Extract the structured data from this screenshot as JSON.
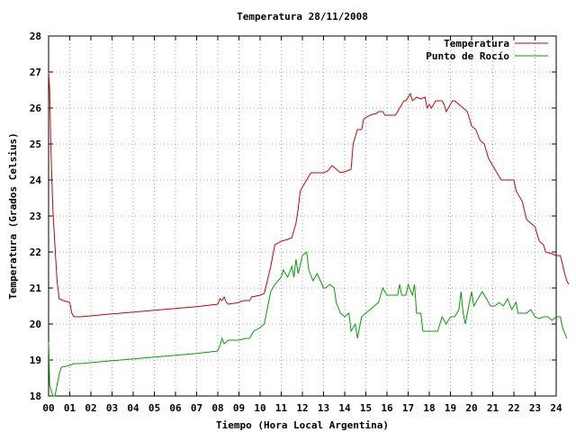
{
  "chart_data": {
    "type": "line",
    "title": "Temperatura 28/11/2008",
    "xlabel": "Tiempo (Hora Local Argentina)",
    "ylabel": "Temperatura (Grados Celsius)",
    "xlim": [
      0,
      24
    ],
    "ylim": [
      18,
      28
    ],
    "xticks": [
      "00",
      "01",
      "02",
      "03",
      "04",
      "05",
      "06",
      "07",
      "08",
      "09",
      "10",
      "11",
      "12",
      "13",
      "14",
      "15",
      "16",
      "17",
      "18",
      "19",
      "20",
      "21",
      "22",
      "23",
      "24"
    ],
    "yticks": [
      "18",
      "19",
      "20",
      "21",
      "22",
      "23",
      "24",
      "25",
      "26",
      "27",
      "28"
    ],
    "grid": true,
    "legend_position": "top-right",
    "series": [
      {
        "name": "Temperatura",
        "color": "#d00000",
        "points": [
          [
            0.0,
            27.0
          ],
          [
            0.05,
            26.5
          ],
          [
            0.1,
            25.0
          ],
          [
            0.2,
            23.2
          ],
          [
            0.3,
            22.2
          ],
          [
            0.4,
            21.2
          ],
          [
            0.5,
            20.7
          ],
          [
            0.7,
            20.65
          ],
          [
            1.0,
            20.6
          ],
          [
            1.1,
            20.3
          ],
          [
            1.2,
            20.2
          ],
          [
            1.5,
            20.2
          ],
          [
            3.0,
            20.28
          ],
          [
            5.0,
            20.38
          ],
          [
            7.0,
            20.48
          ],
          [
            8.0,
            20.55
          ],
          [
            8.1,
            20.7
          ],
          [
            8.2,
            20.65
          ],
          [
            8.3,
            20.75
          ],
          [
            8.4,
            20.6
          ],
          [
            8.5,
            20.55
          ],
          [
            9.0,
            20.6
          ],
          [
            9.2,
            20.65
          ],
          [
            9.5,
            20.65
          ],
          [
            9.6,
            20.75
          ],
          [
            10.0,
            20.8
          ],
          [
            10.2,
            20.85
          ],
          [
            10.3,
            21.1
          ],
          [
            10.5,
            21.6
          ],
          [
            10.7,
            22.2
          ],
          [
            11.0,
            22.3
          ],
          [
            11.3,
            22.35
          ],
          [
            11.5,
            22.4
          ],
          [
            11.7,
            22.8
          ],
          [
            11.8,
            23.2
          ],
          [
            11.9,
            23.7
          ],
          [
            12.0,
            23.8
          ],
          [
            12.2,
            24.0
          ],
          [
            12.4,
            24.2
          ],
          [
            12.7,
            24.2
          ],
          [
            13.0,
            24.2
          ],
          [
            13.2,
            24.25
          ],
          [
            13.4,
            24.4
          ],
          [
            13.6,
            24.3
          ],
          [
            13.8,
            24.2
          ],
          [
            14.1,
            24.25
          ],
          [
            14.3,
            24.3
          ],
          [
            14.4,
            25.0
          ],
          [
            14.6,
            25.4
          ],
          [
            14.8,
            25.4
          ],
          [
            14.9,
            25.7
          ],
          [
            15.2,
            25.8
          ],
          [
            15.5,
            25.85
          ],
          [
            15.6,
            25.9
          ],
          [
            15.8,
            25.9
          ],
          [
            15.9,
            25.8
          ],
          [
            16.1,
            25.8
          ],
          [
            16.4,
            25.8
          ],
          [
            16.5,
            25.9
          ],
          [
            16.7,
            26.1
          ],
          [
            16.8,
            26.2
          ],
          [
            16.9,
            26.2
          ],
          [
            17.0,
            26.3
          ],
          [
            17.1,
            26.4
          ],
          [
            17.2,
            26.2
          ],
          [
            17.4,
            26.3
          ],
          [
            17.6,
            26.25
          ],
          [
            17.8,
            26.3
          ],
          [
            17.9,
            26.0
          ],
          [
            18.0,
            26.1
          ],
          [
            18.1,
            26.0
          ],
          [
            18.3,
            26.2
          ],
          [
            18.6,
            26.2
          ],
          [
            18.7,
            26.1
          ],
          [
            18.8,
            25.9
          ],
          [
            18.9,
            26.0
          ],
          [
            19.1,
            26.2
          ],
          [
            19.2,
            26.2
          ],
          [
            19.4,
            26.1
          ],
          [
            19.6,
            26.0
          ],
          [
            19.8,
            25.9
          ],
          [
            20.0,
            25.5
          ],
          [
            20.2,
            25.4
          ],
          [
            20.4,
            25.1
          ],
          [
            20.6,
            25.0
          ],
          [
            20.8,
            24.6
          ],
          [
            21.0,
            24.4
          ],
          [
            21.2,
            24.2
          ],
          [
            21.4,
            24.0
          ],
          [
            21.7,
            24.0
          ],
          [
            22.0,
            24.0
          ],
          [
            22.1,
            23.7
          ],
          [
            22.3,
            23.5
          ],
          [
            22.4,
            23.4
          ],
          [
            22.6,
            22.9
          ],
          [
            22.8,
            22.8
          ],
          [
            23.0,
            22.7
          ],
          [
            23.2,
            22.3
          ],
          [
            23.4,
            22.2
          ],
          [
            23.5,
            22.0
          ],
          [
            23.8,
            21.95
          ],
          [
            24.0,
            21.9
          ],
          [
            24.2,
            21.9
          ],
          [
            24.4,
            21.4
          ],
          [
            24.5,
            21.2
          ],
          [
            24.6,
            21.1
          ]
        ]
      },
      {
        "name": "Punto de Rocío",
        "color": "#00a000",
        "points": [
          [
            0.0,
            19.5
          ],
          [
            0.05,
            18.3
          ],
          [
            0.2,
            18.0
          ],
          [
            0.3,
            18.0
          ],
          [
            0.4,
            18.3
          ],
          [
            0.5,
            18.6
          ],
          [
            0.6,
            18.8
          ],
          [
            1.0,
            18.85
          ],
          [
            1.2,
            18.9
          ],
          [
            1.5,
            18.9
          ],
          [
            3.0,
            18.98
          ],
          [
            5.0,
            19.08
          ],
          [
            7.0,
            19.18
          ],
          [
            8.0,
            19.25
          ],
          [
            8.1,
            19.4
          ],
          [
            8.2,
            19.6
          ],
          [
            8.3,
            19.45
          ],
          [
            8.5,
            19.55
          ],
          [
            9.0,
            19.55
          ],
          [
            9.3,
            19.6
          ],
          [
            9.5,
            19.6
          ],
          [
            9.7,
            19.8
          ],
          [
            10.0,
            19.9
          ],
          [
            10.2,
            20.0
          ],
          [
            10.4,
            20.6
          ],
          [
            10.5,
            20.9
          ],
          [
            10.7,
            21.1
          ],
          [
            11.0,
            21.3
          ],
          [
            11.1,
            21.5
          ],
          [
            11.3,
            21.3
          ],
          [
            11.5,
            21.6
          ],
          [
            11.6,
            21.3
          ],
          [
            11.7,
            21.8
          ],
          [
            11.8,
            21.4
          ],
          [
            12.0,
            21.9
          ],
          [
            12.2,
            22.0
          ],
          [
            12.3,
            21.5
          ],
          [
            12.5,
            21.2
          ],
          [
            12.7,
            21.4
          ],
          [
            13.0,
            21.0
          ],
          [
            13.1,
            21.0
          ],
          [
            13.3,
            21.1
          ],
          [
            13.5,
            21.0
          ],
          [
            13.6,
            20.6
          ],
          [
            13.8,
            20.3
          ],
          [
            14.0,
            20.2
          ],
          [
            14.2,
            20.3
          ],
          [
            14.3,
            19.8
          ],
          [
            14.5,
            20.0
          ],
          [
            14.6,
            19.6
          ],
          [
            14.8,
            20.2
          ],
          [
            15.0,
            20.3
          ],
          [
            15.2,
            20.4
          ],
          [
            15.4,
            20.5
          ],
          [
            15.6,
            20.6
          ],
          [
            15.8,
            21.0
          ],
          [
            16.0,
            20.8
          ],
          [
            16.2,
            20.8
          ],
          [
            16.5,
            20.8
          ],
          [
            16.6,
            21.1
          ],
          [
            16.7,
            20.8
          ],
          [
            16.9,
            20.8
          ],
          [
            17.0,
            21.1
          ],
          [
            17.2,
            20.8
          ],
          [
            17.3,
            21.1
          ],
          [
            17.4,
            20.3
          ],
          [
            17.6,
            20.3
          ],
          [
            17.7,
            19.8
          ],
          [
            17.9,
            19.8
          ],
          [
            18.2,
            19.8
          ],
          [
            18.4,
            19.8
          ],
          [
            18.6,
            20.2
          ],
          [
            18.8,
            20.0
          ],
          [
            19.0,
            20.2
          ],
          [
            19.2,
            20.2
          ],
          [
            19.4,
            20.4
          ],
          [
            19.5,
            20.9
          ],
          [
            19.6,
            20.3
          ],
          [
            19.7,
            20.0
          ],
          [
            19.9,
            20.6
          ],
          [
            20.0,
            20.9
          ],
          [
            20.1,
            20.5
          ],
          [
            20.2,
            20.6
          ],
          [
            20.4,
            20.8
          ],
          [
            20.5,
            20.9
          ],
          [
            20.7,
            20.7
          ],
          [
            20.9,
            20.5
          ],
          [
            21.1,
            20.5
          ],
          [
            21.3,
            20.6
          ],
          [
            21.5,
            20.5
          ],
          [
            21.7,
            20.7
          ],
          [
            21.9,
            20.4
          ],
          [
            22.1,
            20.6
          ],
          [
            22.2,
            20.3
          ],
          [
            22.4,
            20.3
          ],
          [
            22.6,
            20.3
          ],
          [
            22.8,
            20.4
          ],
          [
            23.0,
            20.2
          ],
          [
            23.2,
            20.15
          ],
          [
            23.4,
            20.2
          ],
          [
            23.6,
            20.2
          ],
          [
            23.8,
            20.1
          ],
          [
            24.0,
            20.2
          ],
          [
            24.2,
            20.2
          ],
          [
            24.3,
            19.9
          ],
          [
            24.5,
            19.6
          ]
        ]
      }
    ]
  }
}
